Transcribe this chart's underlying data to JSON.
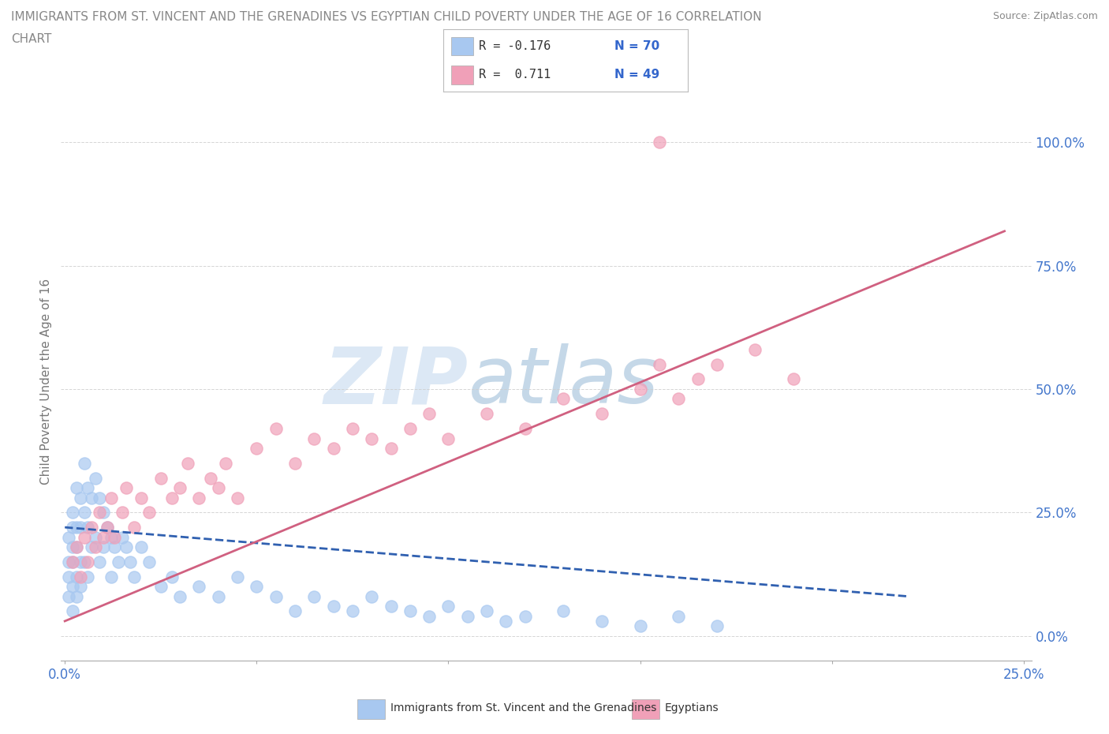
{
  "title_line1": "IMMIGRANTS FROM ST. VINCENT AND THE GRENADINES VS EGYPTIAN CHILD POVERTY UNDER THE AGE OF 16 CORRELATION",
  "title_line2": "CHART",
  "source_text": "Source: ZipAtlas.com",
  "ylabel": "Child Poverty Under the Age of 16",
  "xlim": [
    -0.001,
    0.252
  ],
  "ylim": [
    -0.05,
    1.08
  ],
  "x_ticks": [
    0.0,
    0.05,
    0.1,
    0.15,
    0.2,
    0.25
  ],
  "y_ticks": [
    0.0,
    0.25,
    0.5,
    0.75,
    1.0
  ],
  "y_tick_labels": [
    "0.0%",
    "25.0%",
    "50.0%",
    "75.0%",
    "100.0%"
  ],
  "color_blue": "#a8c8f0",
  "color_pink": "#f0a0b8",
  "color_blue_trend": "#3060b0",
  "color_pink_trend": "#d06080",
  "watermark_zip": "ZIP",
  "watermark_atlas": "atlas",
  "watermark_color_zip": "#dce8f5",
  "watermark_color_atlas": "#c5d8e8",
  "background_color": "#ffffff",
  "grid_color": "#cccccc",
  "blue_scatter_x": [
    0.001,
    0.001,
    0.001,
    0.001,
    0.002,
    0.002,
    0.002,
    0.002,
    0.002,
    0.002,
    0.003,
    0.003,
    0.003,
    0.003,
    0.003,
    0.004,
    0.004,
    0.004,
    0.004,
    0.005,
    0.005,
    0.005,
    0.006,
    0.006,
    0.006,
    0.007,
    0.007,
    0.008,
    0.008,
    0.009,
    0.009,
    0.01,
    0.01,
    0.011,
    0.012,
    0.012,
    0.013,
    0.014,
    0.015,
    0.016,
    0.017,
    0.018,
    0.02,
    0.022,
    0.025,
    0.028,
    0.03,
    0.035,
    0.04,
    0.045,
    0.05,
    0.055,
    0.06,
    0.065,
    0.07,
    0.075,
    0.08,
    0.085,
    0.09,
    0.095,
    0.1,
    0.105,
    0.11,
    0.115,
    0.12,
    0.13,
    0.14,
    0.15,
    0.16,
    0.17
  ],
  "blue_scatter_y": [
    0.2,
    0.15,
    0.12,
    0.08,
    0.25,
    0.22,
    0.18,
    0.15,
    0.1,
    0.05,
    0.3,
    0.22,
    0.18,
    0.12,
    0.08,
    0.28,
    0.22,
    0.15,
    0.1,
    0.35,
    0.25,
    0.15,
    0.3,
    0.22,
    0.12,
    0.28,
    0.18,
    0.32,
    0.2,
    0.28,
    0.15,
    0.25,
    0.18,
    0.22,
    0.2,
    0.12,
    0.18,
    0.15,
    0.2,
    0.18,
    0.15,
    0.12,
    0.18,
    0.15,
    0.1,
    0.12,
    0.08,
    0.1,
    0.08,
    0.12,
    0.1,
    0.08,
    0.05,
    0.08,
    0.06,
    0.05,
    0.08,
    0.06,
    0.05,
    0.04,
    0.06,
    0.04,
    0.05,
    0.03,
    0.04,
    0.05,
    0.03,
    0.02,
    0.04,
    0.02
  ],
  "pink_scatter_x": [
    0.002,
    0.003,
    0.004,
    0.005,
    0.006,
    0.007,
    0.008,
    0.009,
    0.01,
    0.011,
    0.012,
    0.013,
    0.015,
    0.016,
    0.018,
    0.02,
    0.022,
    0.025,
    0.028,
    0.03,
    0.032,
    0.035,
    0.038,
    0.04,
    0.042,
    0.045,
    0.05,
    0.055,
    0.06,
    0.065,
    0.07,
    0.075,
    0.08,
    0.085,
    0.09,
    0.095,
    0.1,
    0.11,
    0.12,
    0.13,
    0.14,
    0.15,
    0.155,
    0.16,
    0.165,
    0.17,
    0.18,
    0.19,
    0.155
  ],
  "pink_scatter_y": [
    0.15,
    0.18,
    0.12,
    0.2,
    0.15,
    0.22,
    0.18,
    0.25,
    0.2,
    0.22,
    0.28,
    0.2,
    0.25,
    0.3,
    0.22,
    0.28,
    0.25,
    0.32,
    0.28,
    0.3,
    0.35,
    0.28,
    0.32,
    0.3,
    0.35,
    0.28,
    0.38,
    0.42,
    0.35,
    0.4,
    0.38,
    0.42,
    0.4,
    0.38,
    0.42,
    0.45,
    0.4,
    0.45,
    0.42,
    0.48,
    0.45,
    0.5,
    0.55,
    0.48,
    0.52,
    0.55,
    0.58,
    0.52,
    1.0
  ],
  "blue_trend_x": [
    0.0,
    0.22
  ],
  "blue_trend_y": [
    0.22,
    0.08
  ],
  "pink_trend_x": [
    0.0,
    0.245
  ],
  "pink_trend_y": [
    0.03,
    0.82
  ]
}
